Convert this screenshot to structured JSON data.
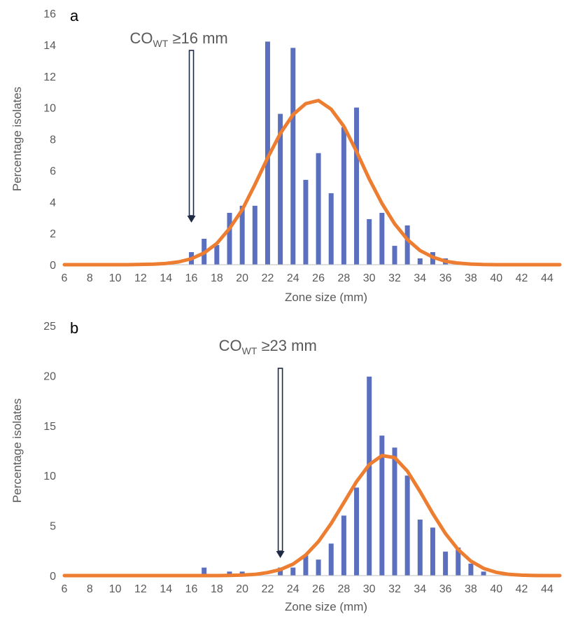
{
  "colors": {
    "bars": "#5B6FBF",
    "curve": "#ED7D31",
    "arrow": "#1F2A44",
    "axis": "#BFBFBF",
    "text": "#595959"
  },
  "chart_data": [
    {
      "type": "bar",
      "panel": "a",
      "annotation": {
        "main": "CO",
        "sub": "WT",
        "rest": " ≥16 mm",
        "x": 16
      },
      "xlabel": "Zone size (mm)",
      "ylabel": "Percentage isolates",
      "xlim": [
        6,
        45
      ],
      "ylim": [
        0,
        16
      ],
      "yticks": [
        0,
        2,
        4,
        6,
        8,
        10,
        12,
        14,
        16
      ],
      "xticks": [
        6,
        8,
        10,
        12,
        14,
        16,
        18,
        20,
        22,
        24,
        26,
        28,
        30,
        32,
        34,
        36,
        38,
        40,
        42,
        44
      ],
      "grid": false,
      "legend": "none",
      "bars": {
        "x": [
          16,
          17,
          18,
          19,
          20,
          21,
          22,
          23,
          24,
          25,
          26,
          27,
          28,
          29,
          30,
          31,
          32,
          33,
          34,
          35,
          36
        ],
        "values": [
          0.8,
          1.65,
          1.25,
          3.3,
          3.75,
          3.75,
          14.2,
          9.6,
          13.8,
          5.4,
          7.1,
          4.55,
          8.75,
          10.0,
          2.9,
          3.3,
          1.2,
          2.5,
          0.4,
          0.8,
          0.4
        ]
      },
      "curve": {
        "x": [
          6,
          7,
          8,
          9,
          10,
          11,
          12,
          13,
          14,
          15,
          16,
          17,
          18,
          19,
          20,
          21,
          22,
          23,
          24,
          25,
          26,
          27,
          28,
          29,
          30,
          31,
          32,
          33,
          34,
          35,
          36,
          37,
          38,
          39,
          40,
          41,
          42,
          43,
          44,
          45
        ],
        "values": [
          0,
          0,
          0,
          0,
          0,
          0,
          0.02,
          0.03,
          0.08,
          0.18,
          0.38,
          0.75,
          1.35,
          2.3,
          3.5,
          5.1,
          6.8,
          8.35,
          9.55,
          10.25,
          10.45,
          9.9,
          8.8,
          7.2,
          5.45,
          3.9,
          2.6,
          1.6,
          0.9,
          0.48,
          0.22,
          0.1,
          0.04,
          0.01,
          0,
          0,
          0,
          0,
          0,
          0
        ]
      }
    },
    {
      "type": "bar",
      "panel": "b",
      "annotation": {
        "main": "CO",
        "sub": "WT",
        "rest": " ≥23 mm",
        "x": 23
      },
      "xlabel": "Zone size (mm)",
      "ylabel": "Percentage isolates",
      "xlim": [
        6,
        45
      ],
      "ylim": [
        0,
        25
      ],
      "yticks": [
        0,
        5,
        10,
        15,
        20,
        25
      ],
      "xticks": [
        6,
        8,
        10,
        12,
        14,
        16,
        18,
        20,
        22,
        24,
        26,
        28,
        30,
        32,
        34,
        36,
        38,
        40,
        42,
        44
      ],
      "grid": false,
      "legend": "none",
      "bars": {
        "x": [
          17,
          19,
          20,
          23,
          24,
          25,
          26,
          27,
          28,
          29,
          30,
          31,
          32,
          33,
          34,
          35,
          36,
          37,
          38,
          39
        ],
        "values": [
          0.8,
          0.4,
          0.4,
          0.8,
          0.8,
          2.0,
          1.6,
          3.2,
          6.0,
          8.8,
          19.9,
          14.0,
          12.8,
          10.0,
          5.6,
          4.8,
          2.4,
          2.8,
          1.2,
          0.4
        ]
      },
      "curve": {
        "x": [
          6,
          7,
          8,
          9,
          10,
          11,
          12,
          13,
          14,
          15,
          16,
          17,
          18,
          19,
          20,
          21,
          22,
          23,
          24,
          25,
          26,
          27,
          28,
          29,
          30,
          31,
          32,
          33,
          34,
          35,
          36,
          37,
          38,
          39,
          40,
          41,
          42,
          43,
          44,
          45
        ],
        "values": [
          0,
          0,
          0,
          0,
          0,
          0,
          0,
          0,
          0,
          0,
          0,
          0,
          0,
          0.02,
          0.05,
          0.12,
          0.3,
          0.6,
          1.15,
          2.05,
          3.4,
          5.2,
          7.3,
          9.4,
          11.1,
          12.0,
          11.8,
          10.45,
          8.4,
          6.2,
          4.2,
          2.6,
          1.45,
          0.72,
          0.32,
          0.12,
          0.04,
          0.01,
          0,
          0
        ]
      }
    }
  ]
}
